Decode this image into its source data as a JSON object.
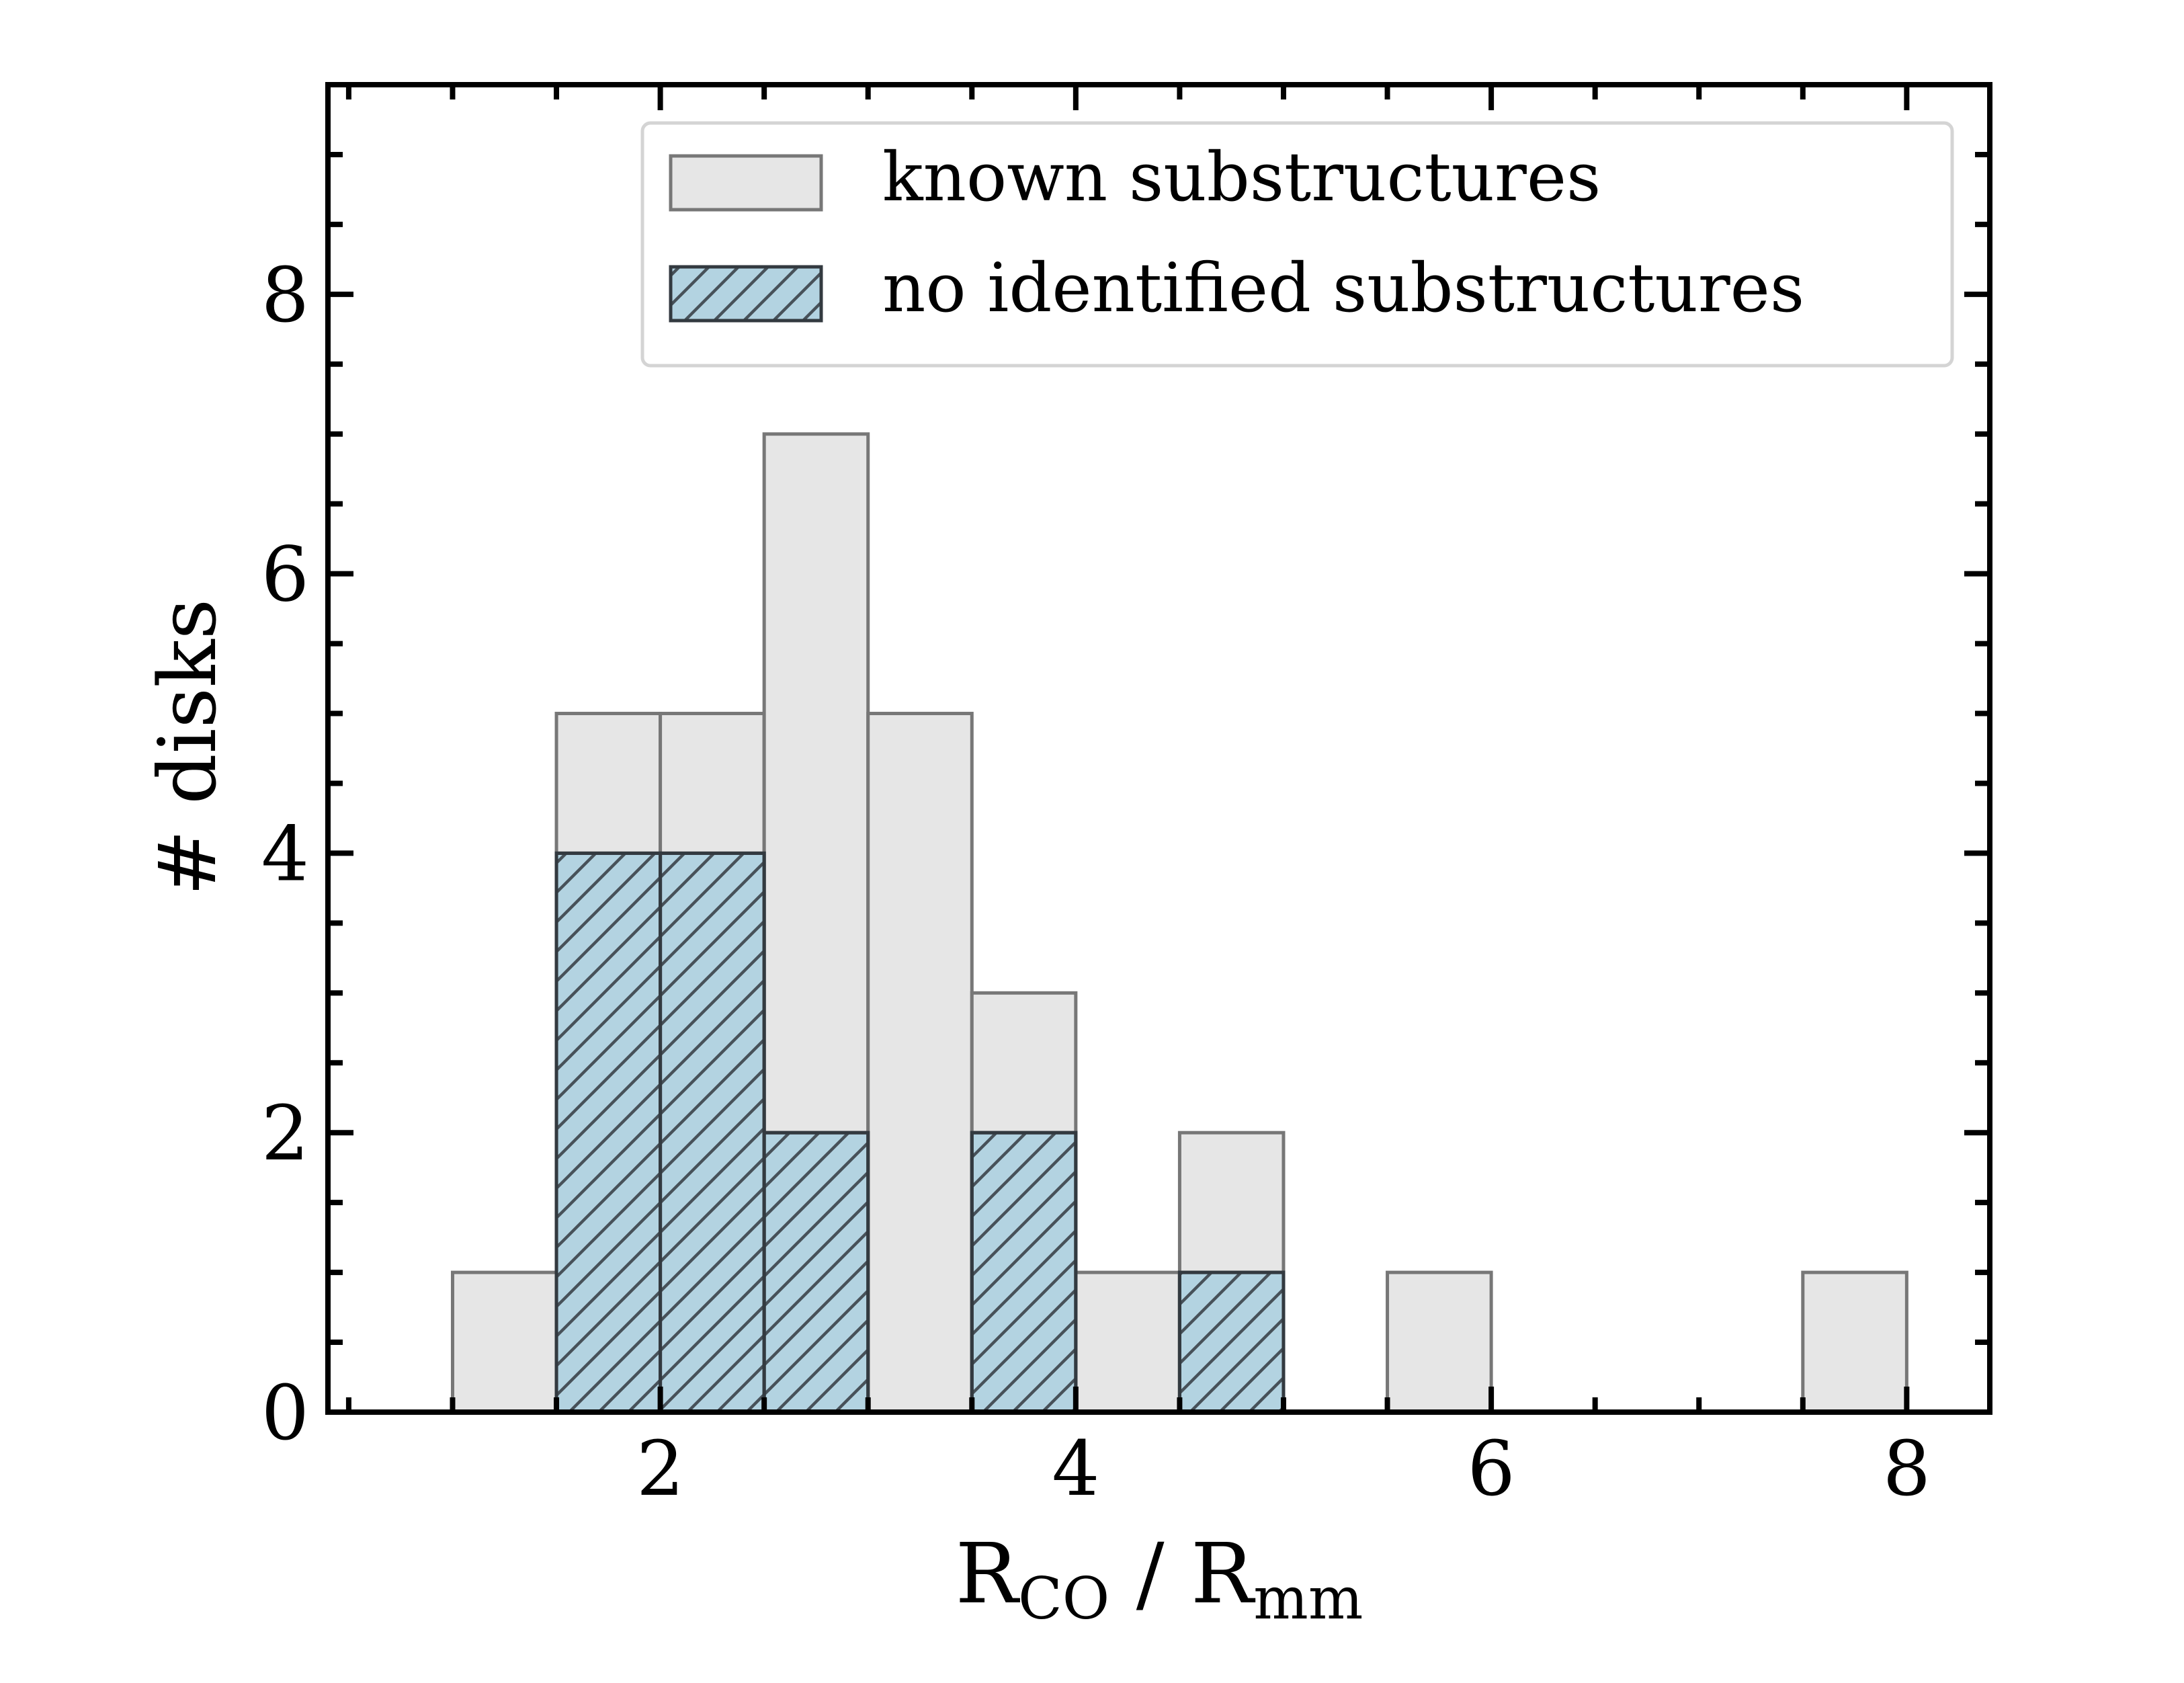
{
  "chart_data": {
    "type": "bar",
    "xlabel": "",
    "ylabel": "# disks",
    "xlabel_parts": {
      "base1": "R",
      "sub1": "CO",
      "middle": " / ",
      "base2": "R",
      "sub2": "mm"
    },
    "xlim": [
      0.4,
      8.4
    ],
    "ylim": [
      0,
      9.5
    ],
    "xticks": [
      2,
      4,
      6,
      8
    ],
    "xtick_labels": [
      "2",
      "4",
      "6",
      "8"
    ],
    "yticks": [
      0,
      2,
      4,
      6,
      8
    ],
    "ytick_labels": [
      "0",
      "2",
      "4",
      "6",
      "8"
    ],
    "x_minor_step": 0.5,
    "y_minor_step": 0.5,
    "bin_width": 0.5,
    "legend_position": "top-right",
    "series": [
      {
        "name": "known substructures",
        "color": "#e6e6e6",
        "edge_color": "#777777",
        "hatch": false,
        "bins": [
          {
            "x0": 1.0,
            "x1": 1.5,
            "count": 1
          },
          {
            "x0": 1.5,
            "x1": 2.0,
            "count": 5
          },
          {
            "x0": 2.0,
            "x1": 2.5,
            "count": 5
          },
          {
            "x0": 2.5,
            "x1": 3.0,
            "count": 7
          },
          {
            "x0": 3.0,
            "x1": 3.5,
            "count": 5
          },
          {
            "x0": 3.5,
            "x1": 4.0,
            "count": 3
          },
          {
            "x0": 4.0,
            "x1": 4.5,
            "count": 1
          },
          {
            "x0": 4.5,
            "x1": 5.0,
            "count": 2
          },
          {
            "x0": 5.5,
            "x1": 6.0,
            "count": 1
          },
          {
            "x0": 7.5,
            "x1": 8.0,
            "count": 1
          }
        ]
      },
      {
        "name": "no identified substructures",
        "color": "#b3d3e1",
        "edge_color": "#333a40",
        "hatch": true,
        "bins": [
          {
            "x0": 1.5,
            "x1": 2.0,
            "count": 4
          },
          {
            "x0": 2.0,
            "x1": 2.5,
            "count": 4
          },
          {
            "x0": 2.5,
            "x1": 3.0,
            "count": 2
          },
          {
            "x0": 3.5,
            "x1": 4.0,
            "count": 2
          },
          {
            "x0": 4.5,
            "x1": 5.0,
            "count": 1
          }
        ]
      }
    ]
  }
}
